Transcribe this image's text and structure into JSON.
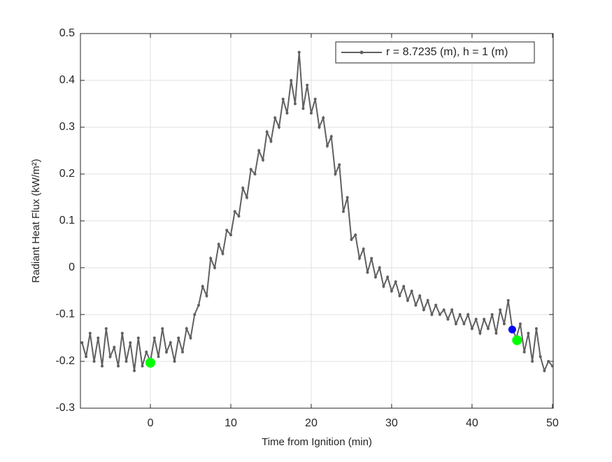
{
  "chart_data": {
    "type": "line",
    "xlabel": "Time from Ignition (min)",
    "ylabel": "Radiant Heat Flux (kW/m²)",
    "x": [
      -8.5,
      -8,
      -7.5,
      -7,
      -6.5,
      -6,
      -5.5,
      -5,
      -4.5,
      -4,
      -3.5,
      -3,
      -2.5,
      -2,
      -1.5,
      -1,
      -0.5,
      0,
      0.5,
      1,
      1.5,
      2,
      2.5,
      3,
      3.5,
      4,
      4.5,
      5,
      5.5,
      6,
      6.5,
      7,
      7.5,
      8,
      8.5,
      9,
      9.5,
      10,
      10.5,
      11,
      11.5,
      12,
      12.5,
      13,
      13.5,
      14,
      14.5,
      15,
      15.5,
      16,
      16.5,
      17,
      17.5,
      18,
      18.5,
      19,
      19.5,
      20,
      20.5,
      21,
      21.5,
      22,
      22.5,
      23,
      23.5,
      24,
      24.5,
      25,
      25.5,
      26,
      26.5,
      27,
      27.5,
      28,
      28.5,
      29,
      29.5,
      30,
      30.5,
      31,
      31.5,
      32,
      32.5,
      33,
      33.5,
      34,
      34.5,
      35,
      35.5,
      36,
      36.5,
      37,
      37.5,
      38,
      38.5,
      39,
      39.5,
      40,
      40.5,
      41,
      41.5,
      42,
      42.5,
      43,
      43.5,
      44,
      44.5,
      45,
      45.5,
      46,
      46.5,
      47,
      47.5,
      48,
      48.5,
      49,
      49.5,
      50
    ],
    "series": [
      {
        "name": "r = 8.7235 (m), h = 1 (m)",
        "color": "#606060",
        "values": [
          -0.16,
          -0.19,
          -0.14,
          -0.2,
          -0.15,
          -0.21,
          -0.13,
          -0.19,
          -0.17,
          -0.21,
          -0.14,
          -0.2,
          -0.16,
          -0.22,
          -0.15,
          -0.21,
          -0.18,
          -0.2,
          -0.15,
          -0.19,
          -0.13,
          -0.18,
          -0.16,
          -0.2,
          -0.15,
          -0.18,
          -0.13,
          -0.15,
          -0.1,
          -0.08,
          -0.04,
          -0.06,
          0.02,
          0.0,
          0.05,
          0.03,
          0.08,
          0.07,
          0.12,
          0.11,
          0.17,
          0.15,
          0.21,
          0.2,
          0.25,
          0.23,
          0.29,
          0.27,
          0.32,
          0.3,
          0.36,
          0.33,
          0.4,
          0.35,
          0.46,
          0.34,
          0.39,
          0.33,
          0.36,
          0.3,
          0.32,
          0.26,
          0.28,
          0.2,
          0.22,
          0.12,
          0.15,
          0.06,
          0.07,
          0.02,
          0.04,
          -0.01,
          0.02,
          -0.02,
          0.0,
          -0.04,
          -0.02,
          -0.05,
          -0.03,
          -0.06,
          -0.04,
          -0.07,
          -0.05,
          -0.08,
          -0.06,
          -0.09,
          -0.07,
          -0.1,
          -0.08,
          -0.1,
          -0.09,
          -0.11,
          -0.09,
          -0.12,
          -0.1,
          -0.12,
          -0.1,
          -0.13,
          -0.11,
          -0.14,
          -0.11,
          -0.13,
          -0.1,
          -0.14,
          -0.09,
          -0.12,
          -0.07,
          -0.13,
          -0.15,
          -0.12,
          -0.18,
          -0.14,
          -0.2,
          -0.13,
          -0.19,
          -0.22,
          -0.2,
          -0.21
        ]
      }
    ],
    "markers": [
      {
        "x": 0,
        "y": -0.203,
        "color": "#00ff00"
      },
      {
        "x": 45,
        "y": -0.132,
        "color": "#0000ff"
      },
      {
        "x": 45.6,
        "y": -0.155,
        "color": "#00ff00"
      }
    ],
    "xlim": [
      -8.7,
      50.1
    ],
    "ylim": [
      -0.3,
      0.5
    ],
    "xticks": [
      0,
      10,
      20,
      30,
      40,
      50
    ],
    "yticks": [
      -0.3,
      -0.2,
      -0.1,
      0,
      0.1,
      0.2,
      0.3,
      0.4,
      0.5
    ],
    "grid": true,
    "legend": "upper right"
  }
}
